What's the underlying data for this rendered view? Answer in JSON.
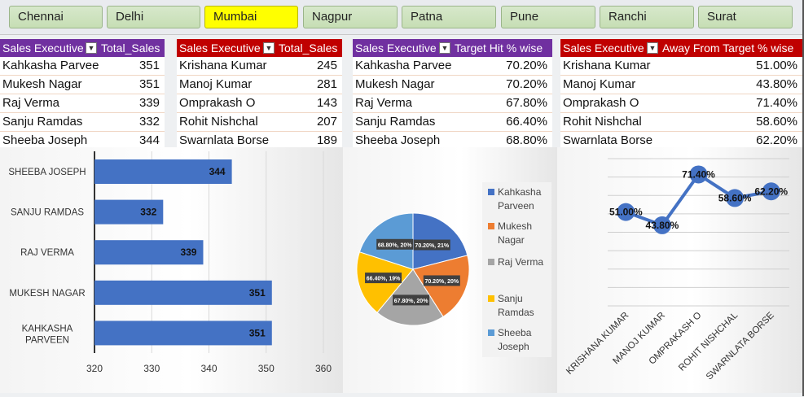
{
  "slicers": {
    "items": [
      "Chennai",
      "Delhi",
      "Mumbai",
      "Nagpur",
      "Patna",
      "Pune",
      "Ranchi",
      "Surat"
    ],
    "selected": "Mumbai",
    "selected_color": "#ffff00"
  },
  "tables": [
    {
      "header_col1": "Sales Executive",
      "header_col2": "Total_Sales",
      "header_color": "#7030a0",
      "rows": [
        {
          "name": "Kahkasha Parvee",
          "value": "351"
        },
        {
          "name": "Mukesh Nagar",
          "value": "351"
        },
        {
          "name": "Raj Verma",
          "value": "339"
        },
        {
          "name": "Sanju Ramdas",
          "value": "332"
        },
        {
          "name": "Sheeba Joseph",
          "value": "344"
        }
      ]
    },
    {
      "header_col1": "Sales Executive",
      "header_col2": "Total_Sales",
      "header_color": "#c00000",
      "rows": [
        {
          "name": "Krishana Kumar",
          "value": "245"
        },
        {
          "name": "Manoj Kumar",
          "value": "281"
        },
        {
          "name": "Omprakash O",
          "value": "143"
        },
        {
          "name": "Rohit Nishchal",
          "value": "207"
        },
        {
          "name": "Swarnlata Borse",
          "value": "189"
        }
      ]
    },
    {
      "header_col1": "Sales Executive",
      "header_col2": "Target Hit % wise",
      "header_color": "#7030a0",
      "rows": [
        {
          "name": "Kahkasha Parvee",
          "value": "70.20%"
        },
        {
          "name": "Mukesh Nagar",
          "value": "70.20%"
        },
        {
          "name": "Raj Verma",
          "value": "67.80%"
        },
        {
          "name": "Sanju Ramdas",
          "value": "66.40%"
        },
        {
          "name": "Sheeba Joseph",
          "value": "68.80%"
        }
      ]
    },
    {
      "header_col1": "Sales Executive",
      "header_col2": "Away From Target % wise",
      "header_color": "#c00000",
      "rows": [
        {
          "name": "Krishana Kumar",
          "value": "51.00%"
        },
        {
          "name": "Manoj Kumar",
          "value": "43.80%"
        },
        {
          "name": "Omprakash O",
          "value": "71.40%"
        },
        {
          "name": "Rohit Nishchal",
          "value": "58.60%"
        },
        {
          "name": "Swarnlata Borse",
          "value": "62.20%"
        }
      ]
    }
  ],
  "chart_data": [
    {
      "type": "bar",
      "orientation": "horizontal",
      "categories": [
        "SHEEBA JOSEPH",
        "SANJU RAMDAS",
        "RAJ VERMA",
        "MUKESH NAGAR",
        "KAHKASHA PARVEEN"
      ],
      "values": [
        344,
        332,
        339,
        351,
        351
      ],
      "xlim": [
        320,
        360
      ],
      "xticks": [
        "320",
        "330",
        "340",
        "350",
        "360"
      ],
      "color": "#4472c4",
      "grid": true
    },
    {
      "type": "pie",
      "labels": [
        "Kahkasha Parveen",
        "Mukesh Nagar",
        "Raj Verma",
        "Sanju Ramdas",
        "Sheeba Joseph"
      ],
      "values": [
        21,
        20,
        20,
        19,
        20
      ],
      "data_labels": [
        "70.20%, 21%",
        "70.20%, 20%",
        "67.80%, 20%",
        "66.40%, 19%",
        "68.80%, 20%"
      ],
      "colors": [
        "#4472c4",
        "#ed7d31",
        "#a5a5a5",
        "#ffc000",
        "#5b9bd5"
      ],
      "legend_position": "right"
    },
    {
      "type": "line",
      "categories": [
        "KRISHANA KUMAR",
        "MANOJ KUMAR",
        "OMPRAKASH O",
        "ROHIT NISHCHAL",
        "SWARNLATA BORSE"
      ],
      "values": [
        51.0,
        43.8,
        71.4,
        58.6,
        62.2
      ],
      "data_labels": [
        "51.00%",
        "43.80%",
        "71.40%",
        "58.60%",
        "62.20%"
      ],
      "ylim": [
        0,
        80
      ],
      "color": "#4472c4",
      "grid": true
    }
  ]
}
